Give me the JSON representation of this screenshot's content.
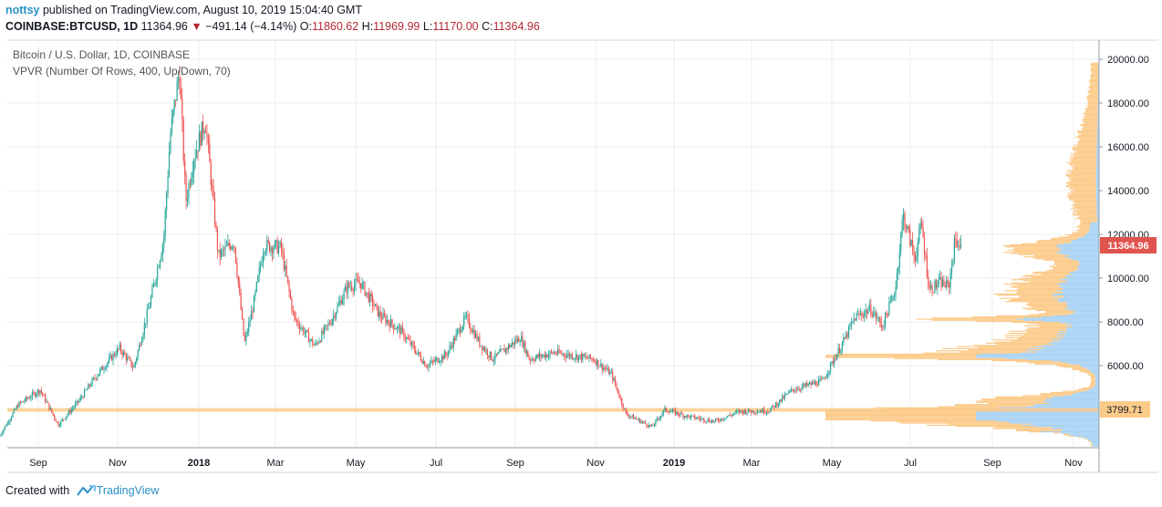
{
  "header": {
    "user": "nottsy",
    "published": "published on TradingView.com, August 10, 2019 15:04:40 GMT"
  },
  "ohlc": {
    "symbol": "COINBASE:BTCUSD, 1D",
    "last": "11364.96",
    "change": "−491.14 (−4.14%)",
    "o_label": "O:",
    "o": "11860.62",
    "h_label": "H:",
    "h": "11969.99",
    "l_label": "L:",
    "l": "11170.00",
    "c_label": "C:",
    "c": "11364.96"
  },
  "legend": {
    "series": "Bitcoin / U.S. Dollar, 1D, COINBASE",
    "indicator": "VPVR (Number Of Rows, 400, Up/Down, 70)"
  },
  "footer": {
    "created": "Created with",
    "brand": "TradingView"
  },
  "colors": {
    "up": "#26a69a",
    "down": "#ef5350",
    "vp_up": "#a9d3f5",
    "vp_down": "#fccb8a",
    "poc": "#fccb8a",
    "price_tag": "#e0544e",
    "grid": "#e9ecef"
  },
  "chart_data": {
    "type": "line",
    "title": "Bitcoin / U.S. Dollar, 1D, COINBASE",
    "x_ticks": [
      "Sep",
      "Nov",
      "2018",
      "Mar",
      "May",
      "Jul",
      "Sep",
      "Nov",
      "2019",
      "Mar",
      "May",
      "Jul",
      "Sep",
      "Nov"
    ],
    "y_ticks": [
      "6000.00",
      "8000.00",
      "10000.00",
      "12000.00",
      "14000.00",
      "16000.00",
      "18000.00",
      "20000.00"
    ],
    "ylim": [
      1000,
      21000
    ],
    "last_price": "11364.96",
    "poc_price": "3799.71",
    "price_path": [
      [
        "2017-08-01",
        2800
      ],
      [
        "2017-08-15",
        4200
      ],
      [
        "2017-09-01",
        4900
      ],
      [
        "2017-09-15",
        3300
      ],
      [
        "2017-10-01",
        4400
      ],
      [
        "2017-10-15",
        5600
      ],
      [
        "2017-11-01",
        6800
      ],
      [
        "2017-11-12",
        5900
      ],
      [
        "2017-11-25",
        9000
      ],
      [
        "2017-12-05",
        11800
      ],
      [
        "2017-12-10",
        16500
      ],
      [
        "2017-12-17",
        19500
      ],
      [
        "2017-12-22",
        13500
      ],
      [
        "2017-12-28",
        15500
      ],
      [
        "2018-01-06",
        17200
      ],
      [
        "2018-01-16",
        11000
      ],
      [
        "2018-01-28",
        11700
      ],
      [
        "2018-02-05",
        7000
      ],
      [
        "2018-02-12",
        8800
      ],
      [
        "2018-02-20",
        11500
      ],
      [
        "2018-03-05",
        11400
      ],
      [
        "2018-03-15",
        8200
      ],
      [
        "2018-03-31",
        6900
      ],
      [
        "2018-04-12",
        8000
      ],
      [
        "2018-04-25",
        9600
      ],
      [
        "2018-05-05",
        9800
      ],
      [
        "2018-05-20",
        8300
      ],
      [
        "2018-06-05",
        7600
      ],
      [
        "2018-06-25",
        6000
      ],
      [
        "2018-07-10",
        6500
      ],
      [
        "2018-07-25",
        8200
      ],
      [
        "2018-08-05",
        7000
      ],
      [
        "2018-08-15",
        6300
      ],
      [
        "2018-09-05",
        7300
      ],
      [
        "2018-09-12",
        6300
      ],
      [
        "2018-10-01",
        6600
      ],
      [
        "2018-10-31",
        6300
      ],
      [
        "2018-11-14",
        5600
      ],
      [
        "2018-11-25",
        3800
      ],
      [
        "2018-12-15",
        3200
      ],
      [
        "2018-12-25",
        4000
      ],
      [
        "2019-01-10",
        3700
      ],
      [
        "2019-02-01",
        3450
      ],
      [
        "2019-02-20",
        3900
      ],
      [
        "2019-03-15",
        3950
      ],
      [
        "2019-04-02",
        4900
      ],
      [
        "2019-04-25",
        5300
      ],
      [
        "2019-05-12",
        7200
      ],
      [
        "2019-05-20",
        8200
      ],
      [
        "2019-06-01",
        8600
      ],
      [
        "2019-06-10",
        7800
      ],
      [
        "2019-06-20",
        9500
      ],
      [
        "2019-06-26",
        12900
      ],
      [
        "2019-07-05",
        10900
      ],
      [
        "2019-07-10",
        12500
      ],
      [
        "2019-07-16",
        9500
      ],
      [
        "2019-07-25",
        9800
      ],
      [
        "2019-07-31",
        9600
      ],
      [
        "2019-08-05",
        11800
      ],
      [
        "2019-08-10",
        11365
      ]
    ]
  }
}
